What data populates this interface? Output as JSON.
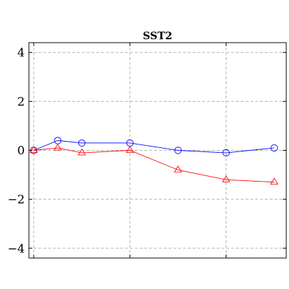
{
  "chart_data": {
    "type": "line",
    "title": "SST2",
    "xlabel": "",
    "ylabel": "",
    "xlim": [
      -0.2,
      10.5
    ],
    "ylim": [
      -4.4,
      4.4
    ],
    "yticks": [
      -4,
      2,
      0,
      -2,
      4
    ],
    "yticks_sorted": [
      -4,
      -2,
      0,
      2,
      4
    ],
    "ytick_labels": [
      "−4",
      "−2",
      "0",
      "2",
      "4"
    ],
    "xgrid": [
      0,
      4,
      8
    ],
    "grid": true,
    "series": [
      {
        "color": "#0000ff",
        "marker": "circle",
        "x": [
          0,
          1,
          2,
          4,
          6,
          8,
          10
        ],
        "values": [
          0.0,
          0.4,
          0.3,
          0.3,
          0.0,
          -0.1,
          0.1
        ]
      },
      {
        "color": "#ff0000",
        "marker": "triangle",
        "x": [
          0,
          1,
          2,
          4,
          6,
          8,
          10
        ],
        "values": [
          0.0,
          0.1,
          -0.1,
          0.0,
          -0.8,
          -1.2,
          -1.3
        ]
      }
    ]
  }
}
